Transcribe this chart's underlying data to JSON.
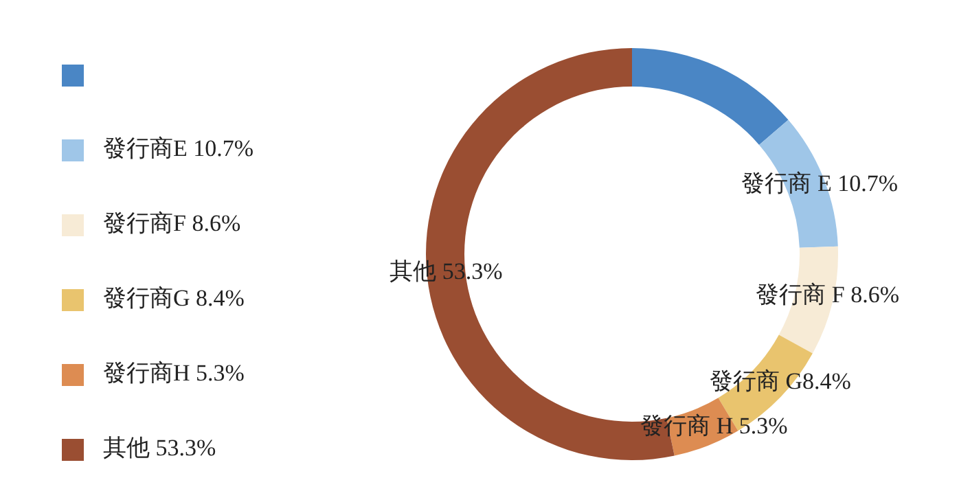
{
  "chart_data": {
    "type": "donut",
    "categories": [
      null,
      "發行商E 10.7%",
      "發行商F 8.6%",
      "發行商G 8.4%",
      "發行商H 5.3%",
      "其他 53.3%"
    ],
    "values": [
      13.7,
      10.7,
      8.6,
      8.4,
      5.3,
      53.3
    ],
    "value_labels": [
      null,
      "發行商 E 10.7%",
      "發行商 F 8.6%",
      "發行商 G8.4%",
      "發行商 H 5.3%",
      "其他 53.3%"
    ],
    "colors": [
      "#4a86c5",
      "#9fc6e8",
      "#f7ebd6",
      "#e9c46e",
      "#dd8c52",
      "#9a4e32"
    ],
    "legend": "left"
  }
}
